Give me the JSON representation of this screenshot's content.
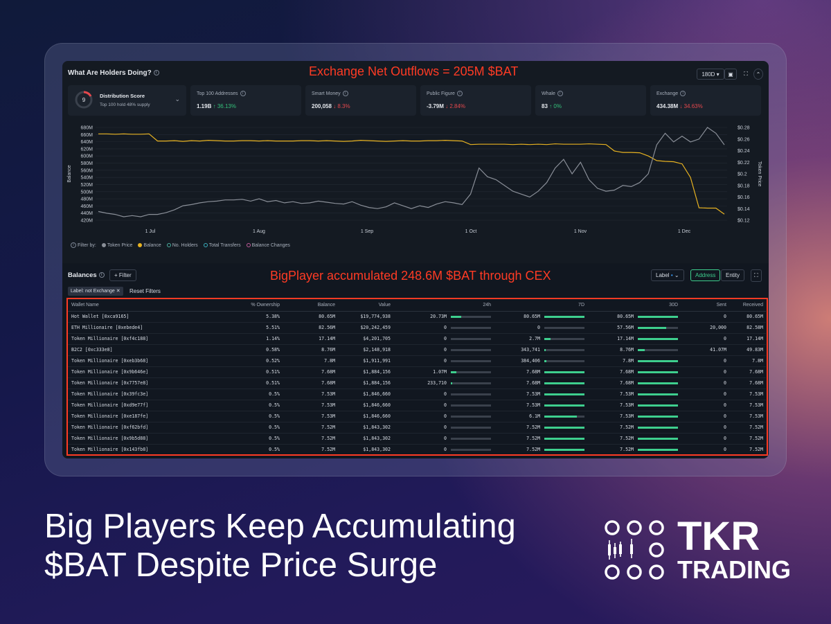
{
  "header": {
    "title": "What Are Holders Doing?",
    "annotation_top": "Exchange Net Outflows = 205M $BAT",
    "timeframe": "180D"
  },
  "cards": [
    {
      "label": "Distribution Score",
      "sub": "Top 100 hold 48% supply",
      "value": "9"
    },
    {
      "label": "Top 100 Addresses",
      "value": "1.19B",
      "change": "↑ 36.13%",
      "dir": "up"
    },
    {
      "label": "Smart Money",
      "value": "200,058",
      "change": "↓ 8.3%",
      "dir": "down"
    },
    {
      "label": "Public Figure",
      "value": "-3.79M",
      "change": "↓ 2.84%",
      "dir": "down"
    },
    {
      "label": "Whale",
      "value": "83",
      "change": "↑ 0%",
      "dir": "up"
    },
    {
      "label": "Exchange",
      "value": "434.38M",
      "change": "↓ 34.63%",
      "dir": "down"
    }
  ],
  "chart_data": {
    "type": "line",
    "ylabel": "Balance",
    "y2label": "Token Price",
    "xticks": [
      "1 Jul",
      "1 Aug",
      "1 Sep",
      "1 Oct",
      "1 Nov",
      "1 Dec"
    ],
    "yticks": [
      "680M",
      "660M",
      "640M",
      "620M",
      "600M",
      "580M",
      "560M",
      "540M",
      "520M",
      "500M",
      "480M",
      "460M",
      "440M",
      "420M"
    ],
    "y2ticks": [
      "$0.28",
      "$0.26",
      "$0.24",
      "$0.22",
      "$0.2",
      "$0.18",
      "$0.16",
      "$0.14",
      "$0.12"
    ],
    "ylim": [
      420,
      680
    ],
    "y2lim": [
      0.12,
      0.28
    ],
    "series": [
      {
        "name": "Balance",
        "color": "#e8b321",
        "axis": "left",
        "values": [
          662,
          662,
          661,
          662,
          661,
          661,
          662,
          642,
          642,
          643,
          641,
          643,
          642,
          644,
          643,
          642,
          642,
          643,
          643,
          642,
          643,
          642,
          642,
          642,
          643,
          643,
          642,
          643,
          642,
          641,
          642,
          644,
          643,
          642,
          641,
          642,
          643,
          642,
          642,
          643,
          643,
          644,
          643,
          642,
          632,
          633,
          633,
          633,
          633,
          632,
          633,
          632,
          633,
          632,
          634,
          633,
          633,
          633,
          634,
          633,
          632,
          614,
          610,
          610,
          609,
          600,
          587,
          585,
          584,
          578,
          540,
          455,
          454,
          454,
          437
        ]
      },
      {
        "name": "Token Price",
        "color": "#8a8f98",
        "axis": "right",
        "values": [
          0.135,
          0.132,
          0.13,
          0.126,
          0.128,
          0.126,
          0.13,
          0.13,
          0.133,
          0.138,
          0.145,
          0.147,
          0.15,
          0.152,
          0.153,
          0.155,
          0.155,
          0.156,
          0.153,
          0.157,
          0.152,
          0.154,
          0.15,
          0.152,
          0.149,
          0.15,
          0.153,
          0.151,
          0.149,
          0.148,
          0.152,
          0.146,
          0.142,
          0.14,
          0.143,
          0.15,
          0.145,
          0.14,
          0.145,
          0.142,
          0.148,
          0.152,
          0.15,
          0.147,
          0.165,
          0.21,
          0.195,
          0.19,
          0.18,
          0.17,
          0.165,
          0.16,
          0.17,
          0.185,
          0.21,
          0.225,
          0.2,
          0.22,
          0.19,
          0.175,
          0.17,
          0.172,
          0.18,
          0.178,
          0.185,
          0.2,
          0.25,
          0.27,
          0.255,
          0.265,
          0.255,
          0.26,
          0.28,
          0.27,
          0.25
        ]
      }
    ]
  },
  "legend": [
    "Filter by:",
    "Token Price",
    "Balance",
    "No. Holders",
    "Total Transfers",
    "Balance Changes"
  ],
  "legend_colors": [
    "#8a8f98",
    "#e8b321",
    "#4ab0a0",
    "#3ab0c0",
    "#c05a9a"
  ],
  "balances": {
    "title": "Balances",
    "filter_btn": "+ Filter",
    "annotation": "BigPlayer accumulated 248.6M $BAT through CEX",
    "label_select": "Label",
    "toggle_address": "Address",
    "toggle_entity": "Entity",
    "chip": "Label: not Exchange ✕",
    "reset": "Reset Filters",
    "columns": [
      "Wallet Name",
      "% Ownership",
      "Balance",
      "Value",
      "24h",
      "7D",
      "30D",
      "Sent",
      "Received"
    ],
    "rows": [
      [
        "Hot Wallet [0xca9165]",
        "5.38%",
        "80.65M",
        "$19,774,938",
        "20.73M",
        "80.65M",
        "80.65M",
        "0",
        "80.65M"
      ],
      [
        "ETH Millionaire [0xebede4]",
        "5.51%",
        "82.56M",
        "$20,242,459",
        "0",
        "0",
        "57.56M",
        "20,000",
        "82.58M"
      ],
      [
        "Token Millionaire [0xf4c188]",
        "1.14%",
        "17.14M",
        "$4,201,705",
        "0",
        "2.7M",
        "17.14M",
        "0",
        "17.14M"
      ],
      [
        "B2C2 [0xc333e8]",
        "0.58%",
        "8.76M",
        "$2,148,918",
        "0",
        "343,741",
        "8.76M",
        "41.07M",
        "49.83M"
      ],
      [
        "Token Millionaire [0xeb3b68]",
        "0.52%",
        "7.8M",
        "$1,911,991",
        "0",
        "384,406",
        "7.8M",
        "0",
        "7.8M"
      ],
      [
        "Token Millionaire [0x9b646e]",
        "0.51%",
        "7.68M",
        "$1,884,156",
        "1.07M",
        "7.68M",
        "7.68M",
        "0",
        "7.68M"
      ],
      [
        "Token Millionaire [0x7757e8]",
        "0.51%",
        "7.68M",
        "$1,884,156",
        "233,710",
        "7.68M",
        "7.68M",
        "0",
        "7.68M"
      ],
      [
        "Token Millionaire [0x39fc3e]",
        "0.5%",
        "7.53M",
        "$1,846,660",
        "0",
        "7.53M",
        "7.53M",
        "0",
        "7.53M"
      ],
      [
        "Token Millionaire [0xd9e77f]",
        "0.5%",
        "7.53M",
        "$1,846,660",
        "0",
        "7.53M",
        "7.53M",
        "0",
        "7.53M"
      ],
      [
        "Token Millionaire [0xe187fe]",
        "0.5%",
        "7.53M",
        "$1,846,660",
        "0",
        "6.1M",
        "7.53M",
        "0",
        "7.53M"
      ],
      [
        "Token Millionaire [0xf62bfd]",
        "0.5%",
        "7.52M",
        "$1,843,302",
        "0",
        "7.52M",
        "7.52M",
        "0",
        "7.52M"
      ],
      [
        "Token Millionaire [0x9b5d88]",
        "0.5%",
        "7.52M",
        "$1,843,302",
        "0",
        "7.52M",
        "7.52M",
        "0",
        "7.52M"
      ],
      [
        "Token Millionaire [0x143fb8]",
        "0.5%",
        "7.52M",
        "$1,843,302",
        "0",
        "7.52M",
        "7.52M",
        "0",
        "7.52M"
      ]
    ],
    "bar_fill": [
      [
        0.26,
        1,
        1
      ],
      [
        0,
        0,
        0.7
      ],
      [
        0,
        0.16,
        1
      ],
      [
        0,
        0.04,
        0.18
      ],
      [
        0,
        0.05,
        1
      ],
      [
        0.14,
        1,
        1
      ],
      [
        0.03,
        1,
        1
      ],
      [
        0,
        1,
        1
      ],
      [
        0,
        1,
        1
      ],
      [
        0,
        0.81,
        1
      ],
      [
        0,
        1,
        1
      ],
      [
        0,
        1,
        1
      ],
      [
        0,
        1,
        1
      ]
    ]
  },
  "headline": {
    "line1": "Big Players Keep Accumulating",
    "line2": "$BAT Despite Price Surge"
  },
  "logo": {
    "line1": "TKR",
    "line2": "TRADING"
  }
}
